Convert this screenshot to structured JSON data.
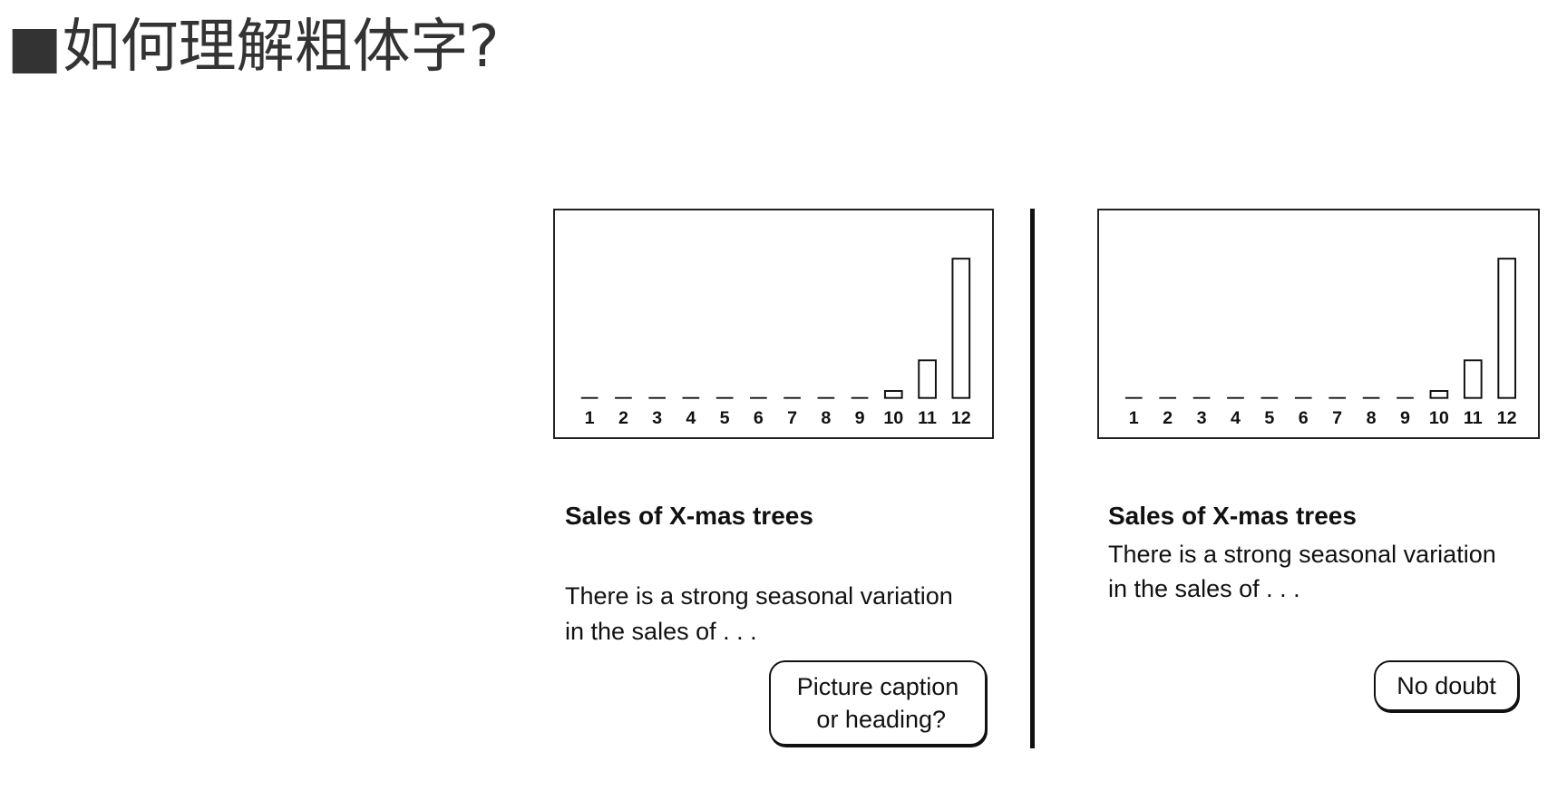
{
  "title": "■如何理解粗体字?",
  "left_panel": {
    "heading": "Sales of X-mas trees",
    "body_line1": "There is a strong seasonal variation",
    "body_line2": "in the sales of . . .",
    "callout": "Picture caption\n or heading?"
  },
  "right_panel": {
    "heading": "Sales of X-mas trees",
    "body_line1": "There is a strong seasonal variation",
    "body_line2": "in the sales of . . .",
    "callout": "No doubt"
  },
  "chart_data": [
    {
      "type": "bar",
      "categories": [
        "1",
        "2",
        "3",
        "4",
        "5",
        "6",
        "7",
        "8",
        "9",
        "10",
        "11",
        "12"
      ],
      "values": [
        0,
        0,
        0,
        0,
        0,
        0,
        0,
        0,
        0,
        5,
        27,
        100
      ],
      "title": "",
      "xlabel": "",
      "ylabel": "",
      "ylim": [
        0,
        100
      ],
      "grid": false
    },
    {
      "type": "bar",
      "categories": [
        "1",
        "2",
        "3",
        "4",
        "5",
        "6",
        "7",
        "8",
        "9",
        "10",
        "11",
        "12"
      ],
      "values": [
        0,
        0,
        0,
        0,
        0,
        0,
        0,
        0,
        0,
        5,
        27,
        100
      ],
      "title": "",
      "xlabel": "",
      "ylabel": "",
      "ylim": [
        0,
        100
      ],
      "grid": false
    }
  ]
}
